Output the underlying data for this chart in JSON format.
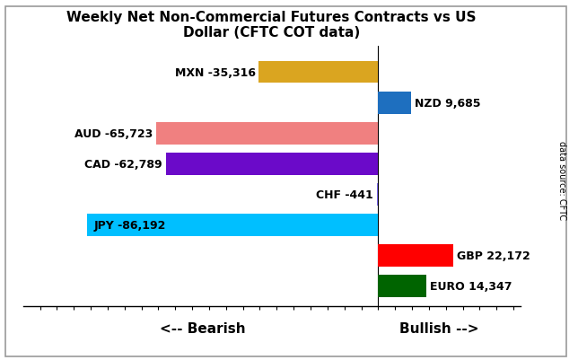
{
  "title": "Weekly Net Non-Commercial Futures Contracts vs US\nDollar (CFTC COT data)",
  "currencies": [
    "MXN",
    "NZD",
    "AUD",
    "CAD",
    "CHF",
    "JPY",
    "GBP",
    "EURO"
  ],
  "values": [
    -35316,
    9685,
    -65723,
    -62789,
    -441,
    -86192,
    22172,
    14347
  ],
  "colors": [
    "#DAA520",
    "#1E6FBF",
    "#F08080",
    "#6B0AC9",
    "#7B68EE",
    "#00BFFF",
    "#FF0000",
    "#006400"
  ],
  "y_positions": [
    7,
    6,
    5,
    4,
    3,
    2,
    1,
    0
  ],
  "bar_height": 0.72,
  "xlabel_left": "<-- Bearish",
  "xlabel_right": "Bullish -->",
  "watermark": "data source: CFTC",
  "xlim": [
    -105000,
    42000
  ],
  "background_color": "#FFFFFF",
  "border_color": "#999999",
  "label_fontsize": 9,
  "title_fontsize": 11
}
